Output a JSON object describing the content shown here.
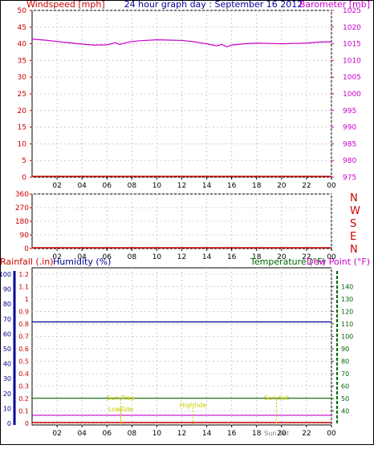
{
  "header": {
    "left_axis_title": "Windspeed [mph]",
    "center_title": "24 hour graph day : September 16 2012",
    "right_axis_title": "Barometer [mb]"
  },
  "direction_labels": [
    "N",
    "W",
    "S",
    "E",
    "N"
  ],
  "bottom_header": {
    "rainfall_title": "Rainfall (.in)",
    "humidity_title": "Humidity (%)",
    "temperature_title": "Temperature (°F)",
    "dewpoint_title": "Dew Point (°F)"
  },
  "annotations": {
    "sunrise": "Sun Rise",
    "lowtide": "Lowtide",
    "hightide": "Hightide",
    "sunset": "Sun Set",
    "sunset_axis_overlay": "Sun Set"
  },
  "colors": {
    "windspeed": "#cc0000",
    "barometer": "#cc00cc",
    "humidity": "#000099",
    "temperature": "#006600",
    "dewpoint": "#cc00cc",
    "rainfall": "#cc0000",
    "annotation": "#cccc00",
    "grid": "#cccccc",
    "frame": "#000000"
  },
  "chart_data": [
    {
      "type": "line",
      "title": "24 hour graph day : September 16 2012",
      "x_ticks": [
        "02",
        "04",
        "06",
        "08",
        "10",
        "12",
        "14",
        "16",
        "18",
        "20",
        "22",
        "00"
      ],
      "xlim": [
        0,
        24
      ],
      "left_axis": {
        "label": "Windspeed [mph]",
        "ylim": [
          0,
          50
        ],
        "ticks": [
          0,
          5,
          10,
          15,
          20,
          25,
          30,
          35,
          40,
          45,
          50
        ]
      },
      "right_axis": {
        "label": "Barometer [mb]",
        "ylim": [
          975,
          1025
        ],
        "ticks": [
          975,
          980,
          985,
          990,
          995,
          1000,
          1005,
          1010,
          1015,
          1020,
          1025
        ]
      },
      "grid": true,
      "series": [
        {
          "name": "Windspeed [mph]",
          "axis": "left",
          "x": [
            0,
            24
          ],
          "y": [
            0,
            0
          ]
        },
        {
          "name": "Barometer [mb]",
          "axis": "right",
          "x": [
            0,
            1,
            2,
            3,
            4,
            5,
            6,
            6.7,
            7,
            7.3,
            8,
            9,
            10,
            11,
            12,
            13,
            14,
            14.8,
            15.2,
            15.6,
            16,
            17,
            18,
            19,
            20,
            21,
            22,
            23,
            24
          ],
          "y": [
            1016.4,
            1016.1,
            1015.7,
            1015.3,
            1014.9,
            1014.6,
            1014.7,
            1015.3,
            1014.8,
            1015.1,
            1015.7,
            1016.0,
            1016.2,
            1016.1,
            1016.0,
            1015.6,
            1015.0,
            1014.4,
            1014.8,
            1014.1,
            1014.6,
            1015.0,
            1015.2,
            1015.1,
            1015.0,
            1015.1,
            1015.2,
            1015.5,
            1015.6
          ]
        }
      ]
    },
    {
      "type": "line",
      "x_ticks": [
        "02",
        "04",
        "06",
        "08",
        "10",
        "12",
        "14",
        "16",
        "18",
        "20",
        "22",
        "00"
      ],
      "xlim": [
        0,
        24
      ],
      "left_axis": {
        "ylim": [
          0,
          360
        ],
        "ticks": [
          0,
          90,
          180,
          270,
          360
        ]
      },
      "right_axis": {
        "tick_labels": [
          "N",
          "W",
          "S",
          "E",
          "N"
        ]
      },
      "grid": true,
      "series": [
        {
          "name": "Wind direction",
          "axis": "left",
          "x": [
            0,
            24
          ],
          "y": [
            0,
            0
          ]
        }
      ]
    },
    {
      "type": "line",
      "x_ticks": [
        "02",
        "04",
        "06",
        "08",
        "10",
        "12",
        "14",
        "16",
        "18",
        "20",
        "22",
        "00"
      ],
      "xlim": [
        0,
        24
      ],
      "humidity_axis": {
        "label": "Humidity (%)",
        "ylim": [
          0,
          100
        ],
        "ticks": [
          0,
          10,
          20,
          30,
          40,
          50,
          60,
          70,
          80,
          90,
          100
        ]
      },
      "rainfall_axis": {
        "label": "Rainfall (.in)",
        "ylim": [
          0,
          1.2
        ],
        "ticks": [
          0,
          0.1,
          0.2,
          0.3,
          0.4,
          0.5,
          0.6,
          0.7,
          0.8,
          0.9,
          1,
          1.1,
          1.2
        ],
        "tick_labels": [
          "0",
          "0.1",
          "0.2",
          "0.3",
          "0.4",
          "0.5",
          "0.6",
          "0.7",
          "0.8",
          "0.9",
          "1",
          "1.1",
          "1.2"
        ]
      },
      "temperature_axis": {
        "label": "Temperature (°F)",
        "ylim": [
          30,
          150
        ],
        "ticks": [
          40,
          50,
          60,
          70,
          80,
          90,
          100,
          110,
          120,
          130,
          140
        ]
      },
      "grid": true,
      "series": [
        {
          "name": "Humidity (%)",
          "axis": "humidity",
          "x": [
            0,
            24
          ],
          "y": [
            68,
            68
          ]
        },
        {
          "name": "Temperature (°F)",
          "axis": "temperature",
          "x": [
            0,
            24
          ],
          "y": [
            50.2,
            50.2
          ]
        },
        {
          "name": "Dew Point (°F)",
          "axis": "temperature",
          "x": [
            0,
            24
          ],
          "y": [
            36.5,
            36.5
          ]
        },
        {
          "name": "Rainfall (.in)",
          "axis": "rainfall",
          "x": [
            0,
            24
          ],
          "y": [
            0,
            0
          ]
        }
      ],
      "events": [
        {
          "label": "Sun Rise",
          "x": 7.1
        },
        {
          "label": "Lowtide",
          "x": 7.1
        },
        {
          "label": "Hightide",
          "x": 12.9
        },
        {
          "label": "Sun Set",
          "x": 19.6
        }
      ]
    }
  ]
}
